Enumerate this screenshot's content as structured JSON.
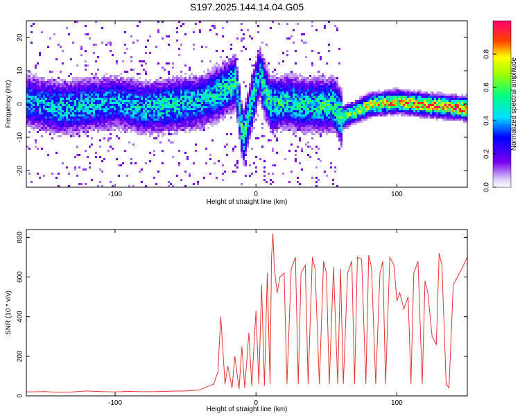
{
  "title": "S197.2025.144.14.04.G05",
  "colors": {
    "snr_line": "#e8322b",
    "frame": "#000000",
    "background": "#ffffff"
  },
  "chart_data": [
    {
      "type": "heatmap",
      "xlabel": "Height of straight line (km)",
      "ylabel": "Frequency (Hz)",
      "xlim": [
        -163,
        150
      ],
      "ylim": [
        -25,
        25
      ],
      "xticks": [
        -100,
        0,
        100
      ],
      "yticks": [
        -20,
        -10,
        0,
        10,
        20
      ],
      "colorbar": {
        "label": "Normalized spectral amplitude",
        "range": [
          0,
          1
        ],
        "ticks": [
          "0.0",
          "0.2",
          "0.4",
          "0.6",
          "0.8"
        ],
        "tick_values": [
          0,
          0.2,
          0.4,
          0.6,
          0.8
        ]
      },
      "ridge": [
        {
          "x": -160,
          "f": 1,
          "a": 0.45
        },
        {
          "x": -140,
          "f": -1,
          "a": 0.5
        },
        {
          "x": -120,
          "f": 0,
          "a": 0.5
        },
        {
          "x": -100,
          "f": 1,
          "a": 0.45
        },
        {
          "x": -80,
          "f": -1,
          "a": 0.5
        },
        {
          "x": -60,
          "f": 0,
          "a": 0.55
        },
        {
          "x": -40,
          "f": 1,
          "a": 0.5
        },
        {
          "x": -25,
          "f": 4,
          "a": 0.55
        },
        {
          "x": -15,
          "f": 7,
          "a": 0.6
        },
        {
          "x": -10,
          "f": -10,
          "a": 0.65
        },
        {
          "x": 2,
          "f": 10,
          "a": 0.5
        },
        {
          "x": 5,
          "f": 5,
          "a": 0.6
        },
        {
          "x": 10,
          "f": 0,
          "a": 0.6
        },
        {
          "x": 20,
          "f": 1,
          "a": 0.55
        },
        {
          "x": 35,
          "f": 0,
          "a": 0.55
        },
        {
          "x": 55,
          "f": 0,
          "a": 0.6
        },
        {
          "x": 60,
          "f": -4,
          "a": 0.65
        },
        {
          "x": 70,
          "f": -2,
          "a": 0.7
        },
        {
          "x": 80,
          "f": 0,
          "a": 0.85
        },
        {
          "x": 100,
          "f": 1,
          "a": 0.9
        },
        {
          "x": 120,
          "f": 0,
          "a": 0.95
        },
        {
          "x": 147,
          "f": -1,
          "a": 1.0
        }
      ]
    },
    {
      "type": "line",
      "xlabel": "Height of straight line (km)",
      "ylabel": "SNR (10 * v/v)",
      "xlim": [
        -163,
        150
      ],
      "ylim": [
        0,
        840
      ],
      "xticks": [
        -100,
        0,
        100
      ],
      "yticks": [
        0,
        200,
        400,
        600,
        800
      ],
      "series": [
        {
          "x": [
            -163,
            -150,
            -140,
            -130,
            -120,
            -110,
            -100,
            -90,
            -80,
            -70,
            -60,
            -50,
            -40,
            -35,
            -30,
            -27,
            -25,
            -22,
            -20,
            -17,
            -15,
            -12,
            -10,
            -8,
            -5,
            -3,
            0,
            2,
            4,
            6,
            8,
            10,
            11,
            12,
            13,
            15,
            17,
            20,
            22,
            25,
            28,
            30,
            32,
            35,
            37,
            40,
            42,
            45,
            48,
            50,
            52,
            55,
            58,
            60,
            62,
            65,
            68,
            70,
            72,
            75,
            78,
            80,
            82,
            85,
            88,
            90,
            92,
            95,
            98,
            100,
            102,
            105,
            108,
            110,
            112,
            115,
            118,
            120,
            122,
            125,
            128,
            130,
            132,
            135,
            137,
            140,
            143,
            146,
            150
          ],
          "y": [
            20,
            22,
            18,
            20,
            25,
            22,
            20,
            23,
            21,
            22,
            24,
            25,
            30,
            45,
            60,
            120,
            400,
            60,
            150,
            40,
            200,
            35,
            250,
            40,
            320,
            50,
            430,
            60,
            560,
            50,
            620,
            60,
            700,
            820,
            650,
            520,
            600,
            620,
            60,
            640,
            700,
            60,
            620,
            660,
            60,
            700,
            640,
            60,
            680,
            620,
            60,
            650,
            60,
            640,
            60,
            620,
            680,
            60,
            700,
            690,
            60,
            710,
            650,
            60,
            620,
            680,
            60,
            700,
            660,
            480,
            520,
            440,
            500,
            60,
            620,
            680,
            60,
            580,
            520,
            300,
            260,
            720,
            660,
            60,
            40,
            560,
            600,
            640,
            700
          ]
        }
      ]
    }
  ]
}
